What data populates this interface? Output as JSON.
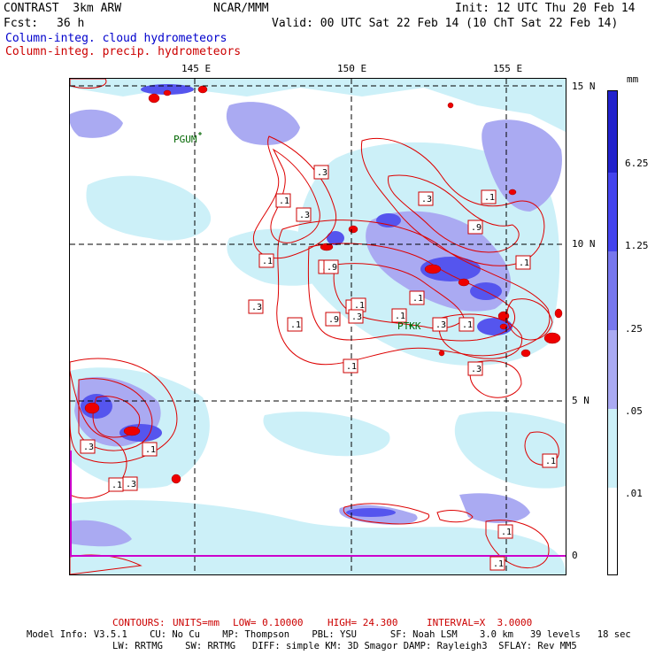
{
  "header": {
    "model": "CONTRAST  3km ARW",
    "org": "NCAR/MMM",
    "init": "Init: 12 UTC Thu 20 Feb 14",
    "fcst_label": "Fcst:",
    "fcst_value": "36 h",
    "valid": "Valid: 00 UTC Sat 22 Feb 14 (10 ChT Sat 22 Feb 14)",
    "field1": "Column-integ. cloud hydrometeors",
    "field2": "Column-integ. precip. hydrometeors"
  },
  "map": {
    "lon_labels": [
      "145 E",
      "150 E",
      "155 E"
    ],
    "lat_labels": [
      "15 N",
      "10 N",
      "5 N",
      "0"
    ],
    "stations": [
      "PGUM",
      "PTKK"
    ],
    "contour_labels": [
      ".3",
      ".1",
      ".3",
      ".1",
      ".3",
      ".9",
      ".3",
      ".9",
      ".1",
      ".9",
      ".3",
      ".1",
      ".1",
      ".1",
      ".9",
      ".3",
      ".1",
      ".1",
      ".3",
      ".1",
      ".3",
      ".1",
      ".3",
      ".1",
      ".3",
      ".1",
      ".1",
      ".1",
      ".1"
    ]
  },
  "colorbar": {
    "unit": "mm",
    "levels": [
      "6.25",
      "1.25",
      ".25",
      ".05",
      ".01"
    ],
    "colors": [
      "#2222cc",
      "#4444ee",
      "#7777ee",
      "#aaaaf2",
      "#ccf0f8",
      "#ffffff"
    ]
  },
  "footer": {
    "contours_label": "CONTOURS:",
    "units": "UNITS=mm",
    "low": "LOW= 0.10000",
    "high": "HIGH= 24.300",
    "interval": "INTERVAL=X  3.0000",
    "line1": "Model Info: V3.5.1    CU: No Cu    MP: Thompson    PBL: YSU      SF: Noah LSM    3.0 km   39 levels   18 sec",
    "line2": "LW: RRTMG    SW: RRTMG   DIFF: simple KM: 3D Smagor DAMP: Rayleigh3  SFLAY: Rev MM5"
  }
}
